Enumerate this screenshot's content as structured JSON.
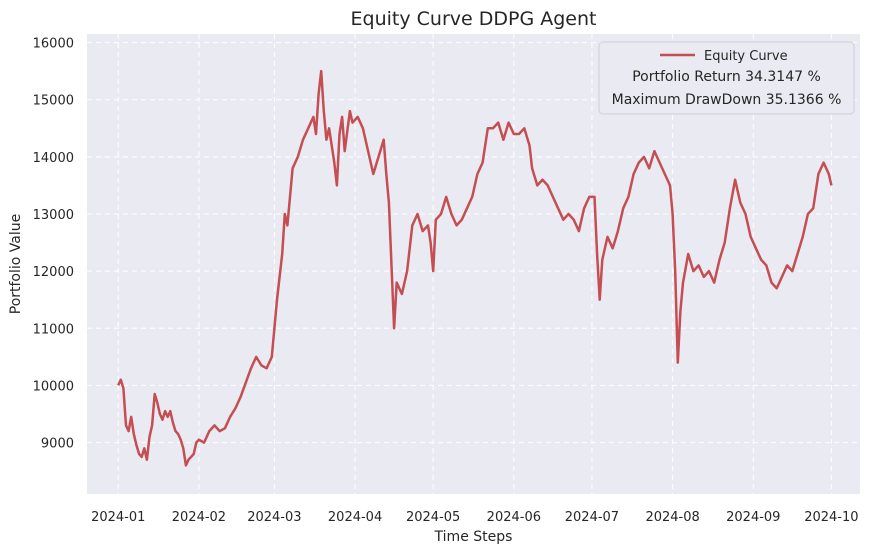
{
  "chart_data": {
    "type": "line",
    "title": "Equity Curve DDPG Agent",
    "xlabel": "Time Steps",
    "ylabel": "Portfolio Value",
    "x_ticks": [
      "2024-01",
      "2024-02",
      "2024-03",
      "2024-04",
      "2024-05",
      "2024-06",
      "2024-07",
      "2024-08",
      "2024-09",
      "2024-10"
    ],
    "y_ticks": [
      9000,
      10000,
      11000,
      12000,
      13000,
      14000,
      15000,
      16000
    ],
    "ylim": [
      8100,
      16150
    ],
    "xlim": [
      "2023-12-20",
      "2024-10-12"
    ],
    "grid": true,
    "legend": {
      "placement": "top-right",
      "entries": [
        "Equity Curve"
      ],
      "portfolio_return": "Portfolio Return 34.3147 %",
      "max_drawdown": "Maximum DrawDown 35.1366 %"
    },
    "colors": {
      "line": "#c44e52",
      "background": "#eaeaf2",
      "grid": "#ffffff"
    },
    "series": [
      {
        "name": "Equity Curve",
        "points": [
          [
            "2024-01-01",
            10000
          ],
          [
            "2024-01-02",
            10100
          ],
          [
            "2024-01-03",
            9950
          ],
          [
            "2024-01-04",
            9300
          ],
          [
            "2024-01-05",
            9200
          ],
          [
            "2024-01-06",
            9450
          ],
          [
            "2024-01-07",
            9150
          ],
          [
            "2024-01-08",
            8950
          ],
          [
            "2024-01-09",
            8800
          ],
          [
            "2024-01-10",
            8750
          ],
          [
            "2024-01-11",
            8900
          ],
          [
            "2024-01-12",
            8700
          ],
          [
            "2024-01-13",
            9100
          ],
          [
            "2024-01-14",
            9300
          ],
          [
            "2024-01-15",
            9850
          ],
          [
            "2024-01-16",
            9700
          ],
          [
            "2024-01-17",
            9500
          ],
          [
            "2024-01-18",
            9400
          ],
          [
            "2024-01-19",
            9550
          ],
          [
            "2024-01-20",
            9450
          ],
          [
            "2024-01-21",
            9550
          ],
          [
            "2024-01-22",
            9350
          ],
          [
            "2024-01-23",
            9200
          ],
          [
            "2024-01-24",
            9150
          ],
          [
            "2024-01-25",
            9050
          ],
          [
            "2024-01-26",
            8900
          ],
          [
            "2024-01-27",
            8600
          ],
          [
            "2024-01-28",
            8700
          ],
          [
            "2024-01-29",
            8750
          ],
          [
            "2024-01-30",
            8800
          ],
          [
            "2024-01-31",
            9000
          ],
          [
            "2024-02-01",
            9050
          ],
          [
            "2024-02-03",
            9000
          ],
          [
            "2024-02-05",
            9200
          ],
          [
            "2024-02-07",
            9300
          ],
          [
            "2024-02-09",
            9200
          ],
          [
            "2024-02-11",
            9250
          ],
          [
            "2024-02-13",
            9450
          ],
          [
            "2024-02-15",
            9600
          ],
          [
            "2024-02-17",
            9800
          ],
          [
            "2024-02-19",
            10050
          ],
          [
            "2024-02-21",
            10300
          ],
          [
            "2024-02-23",
            10500
          ],
          [
            "2024-02-25",
            10350
          ],
          [
            "2024-02-27",
            10300
          ],
          [
            "2024-02-29",
            10500
          ],
          [
            "2024-03-02",
            11500
          ],
          [
            "2024-03-04",
            12300
          ],
          [
            "2024-03-05",
            13000
          ],
          [
            "2024-03-06",
            12800
          ],
          [
            "2024-03-08",
            13800
          ],
          [
            "2024-03-10",
            14000
          ],
          [
            "2024-03-12",
            14300
          ],
          [
            "2024-03-14",
            14500
          ],
          [
            "2024-03-16",
            14700
          ],
          [
            "2024-03-17",
            14400
          ],
          [
            "2024-03-18",
            15100
          ],
          [
            "2024-03-19",
            15500
          ],
          [
            "2024-03-20",
            14800
          ],
          [
            "2024-03-21",
            14300
          ],
          [
            "2024-03-22",
            14500
          ],
          [
            "2024-03-24",
            13900
          ],
          [
            "2024-03-25",
            13500
          ],
          [
            "2024-03-26",
            14400
          ],
          [
            "2024-03-27",
            14700
          ],
          [
            "2024-03-28",
            14100
          ],
          [
            "2024-03-30",
            14800
          ],
          [
            "2024-03-31",
            14600
          ],
          [
            "2024-04-02",
            14700
          ],
          [
            "2024-04-04",
            14500
          ],
          [
            "2024-04-06",
            14100
          ],
          [
            "2024-04-08",
            13700
          ],
          [
            "2024-04-10",
            14000
          ],
          [
            "2024-04-12",
            14300
          ],
          [
            "2024-04-13",
            13700
          ],
          [
            "2024-04-14",
            13200
          ],
          [
            "2024-04-15",
            12100
          ],
          [
            "2024-04-16",
            11000
          ],
          [
            "2024-04-17",
            11800
          ],
          [
            "2024-04-19",
            11600
          ],
          [
            "2024-04-21",
            12000
          ],
          [
            "2024-04-23",
            12800
          ],
          [
            "2024-04-25",
            13000
          ],
          [
            "2024-04-27",
            12700
          ],
          [
            "2024-04-29",
            12800
          ],
          [
            "2024-04-30",
            12500
          ],
          [
            "2024-05-01",
            12000
          ],
          [
            "2024-05-02",
            12900
          ],
          [
            "2024-05-04",
            13000
          ],
          [
            "2024-05-06",
            13300
          ],
          [
            "2024-05-08",
            13000
          ],
          [
            "2024-05-10",
            12800
          ],
          [
            "2024-05-12",
            12900
          ],
          [
            "2024-05-14",
            13100
          ],
          [
            "2024-05-16",
            13300
          ],
          [
            "2024-05-18",
            13700
          ],
          [
            "2024-05-20",
            13900
          ],
          [
            "2024-05-22",
            14500
          ],
          [
            "2024-05-24",
            14500
          ],
          [
            "2024-05-26",
            14600
          ],
          [
            "2024-05-28",
            14300
          ],
          [
            "2024-05-30",
            14600
          ],
          [
            "2024-06-01",
            14400
          ],
          [
            "2024-06-03",
            14400
          ],
          [
            "2024-06-05",
            14500
          ],
          [
            "2024-06-07",
            14200
          ],
          [
            "2024-06-08",
            13800
          ],
          [
            "2024-06-10",
            13500
          ],
          [
            "2024-06-12",
            13600
          ],
          [
            "2024-06-14",
            13500
          ],
          [
            "2024-06-16",
            13300
          ],
          [
            "2024-06-18",
            13100
          ],
          [
            "2024-06-20",
            12900
          ],
          [
            "2024-06-22",
            13000
          ],
          [
            "2024-06-24",
            12900
          ],
          [
            "2024-06-26",
            12700
          ],
          [
            "2024-06-28",
            13100
          ],
          [
            "2024-06-30",
            13300
          ],
          [
            "2024-07-02",
            13300
          ],
          [
            "2024-07-03",
            12300
          ],
          [
            "2024-07-04",
            11500
          ],
          [
            "2024-07-05",
            12200
          ],
          [
            "2024-07-07",
            12600
          ],
          [
            "2024-07-09",
            12400
          ],
          [
            "2024-07-11",
            12700
          ],
          [
            "2024-07-13",
            13100
          ],
          [
            "2024-07-15",
            13300
          ],
          [
            "2024-07-17",
            13700
          ],
          [
            "2024-07-19",
            13900
          ],
          [
            "2024-07-21",
            14000
          ],
          [
            "2024-07-23",
            13800
          ],
          [
            "2024-07-25",
            14100
          ],
          [
            "2024-07-27",
            13900
          ],
          [
            "2024-07-29",
            13700
          ],
          [
            "2024-07-31",
            13500
          ],
          [
            "2024-08-01",
            13000
          ],
          [
            "2024-08-02",
            12000
          ],
          [
            "2024-08-03",
            10400
          ],
          [
            "2024-08-04",
            11300
          ],
          [
            "2024-08-05",
            11800
          ],
          [
            "2024-08-07",
            12300
          ],
          [
            "2024-08-09",
            12000
          ],
          [
            "2024-08-11",
            12100
          ],
          [
            "2024-08-13",
            11900
          ],
          [
            "2024-08-15",
            12000
          ],
          [
            "2024-08-17",
            11800
          ],
          [
            "2024-08-19",
            12200
          ],
          [
            "2024-08-21",
            12500
          ],
          [
            "2024-08-23",
            13100
          ],
          [
            "2024-08-25",
            13600
          ],
          [
            "2024-08-27",
            13200
          ],
          [
            "2024-08-29",
            13000
          ],
          [
            "2024-08-31",
            12600
          ],
          [
            "2024-09-02",
            12400
          ],
          [
            "2024-09-04",
            12200
          ],
          [
            "2024-09-06",
            12100
          ],
          [
            "2024-09-08",
            11800
          ],
          [
            "2024-09-10",
            11700
          ],
          [
            "2024-09-12",
            11900
          ],
          [
            "2024-09-14",
            12100
          ],
          [
            "2024-09-16",
            12000
          ],
          [
            "2024-09-18",
            12300
          ],
          [
            "2024-09-20",
            12600
          ],
          [
            "2024-09-22",
            13000
          ],
          [
            "2024-09-24",
            13100
          ],
          [
            "2024-09-26",
            13700
          ],
          [
            "2024-09-28",
            13900
          ],
          [
            "2024-09-30",
            13700
          ],
          [
            "2024-10-01",
            13500
          ]
        ]
      }
    ]
  }
}
